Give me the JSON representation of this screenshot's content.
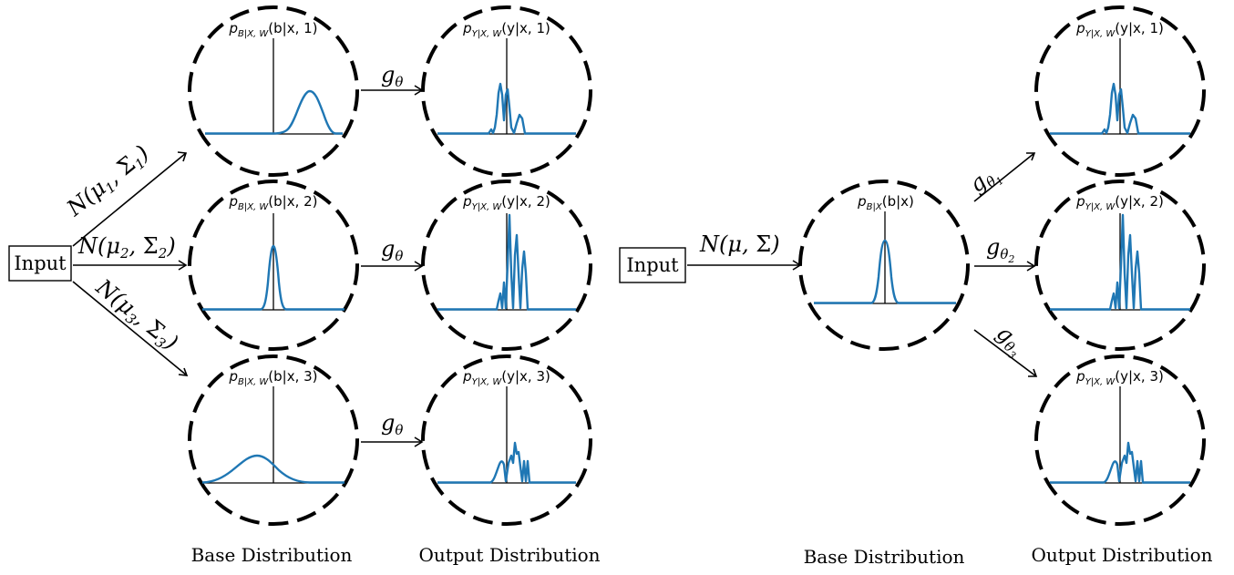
{
  "inputs": [
    "Input",
    "Input"
  ],
  "captions": {
    "base": "Base Distribution",
    "output": "Output Distribution"
  },
  "plot_titles": {
    "left_base": [
      {
        "p": "p",
        "sub": "B|X, W",
        "arg": "(b|x, 1)"
      },
      {
        "p": "p",
        "sub": "B|X, W",
        "arg": "(b|x, 2)"
      },
      {
        "p": "p",
        "sub": "B|X, W",
        "arg": "(b|x, 3)"
      }
    ],
    "left_output": [
      {
        "p": "p",
        "sub": "Y|X, W",
        "arg": "(y|x, 1)"
      },
      {
        "p": "p",
        "sub": "Y|X, W",
        "arg": "(y|x, 2)"
      },
      {
        "p": "p",
        "sub": "Y|X, W",
        "arg": "(y|x, 3)"
      }
    ],
    "right_base": {
      "p": "p",
      "sub": "B|X",
      "arg": "(b|x)"
    },
    "right_output": [
      {
        "p": "p",
        "sub": "Y|X, W",
        "arg": "(y|x, 1)"
      },
      {
        "p": "p",
        "sub": "Y|X, W",
        "arg": "(y|x, 2)"
      },
      {
        "p": "p",
        "sub": "Y|X, W",
        "arg": "(y|x, 3)"
      }
    ]
  },
  "left_normals": [
    {
      "mu": "μ",
      "sigma": "Σ",
      "idx": "1"
    },
    {
      "mu": "μ",
      "sigma": "Σ",
      "idx": "2"
    },
    {
      "mu": "μ",
      "sigma": "Σ",
      "idx": "3"
    }
  ],
  "left_transform": {
    "g": "g",
    "sub": "θ"
  },
  "right_normal": {
    "mu": "μ",
    "sigma": "Σ"
  },
  "right_transforms": [
    {
      "g": "g",
      "sub": "θ",
      "idx": "1"
    },
    {
      "g": "g",
      "sub": "θ",
      "idx": "2"
    },
    {
      "g": "g",
      "sub": "θ",
      "idx": "3"
    }
  ],
  "colors": {
    "curve": "#1f77b4",
    "stroke": "#000000"
  }
}
